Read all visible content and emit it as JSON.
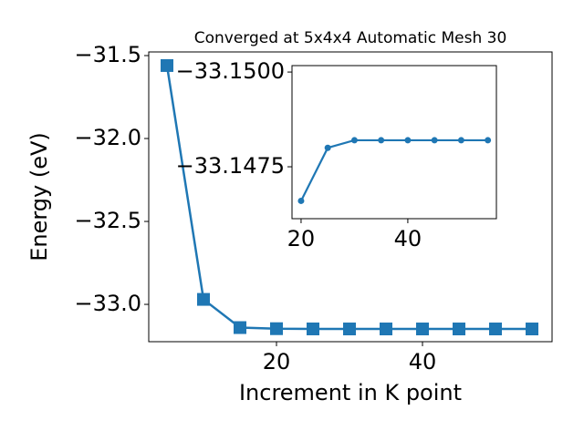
{
  "chart_data": [
    {
      "type": "line",
      "title": "Converged at 5x4x4 Automatic Mesh 30",
      "x_label": "Increment in K point",
      "y_label": "Energy (eV)",
      "x": [
        5,
        10,
        15,
        20,
        25,
        30,
        35,
        40,
        45,
        50,
        55
      ],
      "series": [
        {
          "color": "#1f77b4",
          "marker": "square",
          "values": [
            -31.56,
            -32.97,
            -33.14,
            -33.1466,
            -33.148,
            -33.1482,
            -33.1482,
            -33.1482,
            -33.1482,
            -33.1482,
            -33.1482
          ]
        }
      ],
      "xlim": [
        2.5,
        57.75
      ],
      "ylim": [
        -33.225,
        -31.478
      ],
      "xticks": [
        20,
        40
      ],
      "yticks": [
        {
          "value": -31.5,
          "label": "−31.5"
        },
        {
          "value": -32.0,
          "label": "−32.0"
        },
        {
          "value": -32.5,
          "label": "−32.5"
        },
        {
          "value": -33.0,
          "label": "−33.0"
        }
      ]
    },
    {
      "type": "line",
      "x": [
        20,
        25,
        30,
        35,
        40,
        45,
        50,
        55
      ],
      "series": [
        {
          "color": "#1f77b4",
          "marker": "circle",
          "values": [
            -33.1466,
            -33.148,
            -33.1482,
            -33.1482,
            -33.1482,
            -33.1482,
            -33.1482,
            -33.1482
          ]
        }
      ],
      "xlim": [
        18.3,
        56.6
      ],
      "ylim": [
        -33.14613,
        -33.15017
      ],
      "xticks": [
        20,
        40
      ],
      "yticks": [
        {
          "value": -33.15,
          "label": "−33.1500"
        },
        {
          "value": -33.1475,
          "label": "−33.1475"
        }
      ]
    }
  ]
}
